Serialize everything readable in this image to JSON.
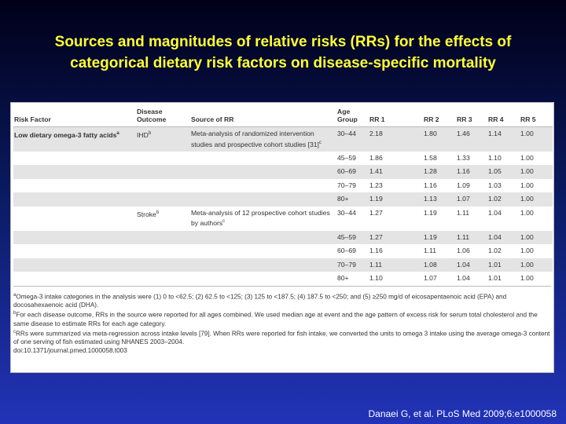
{
  "title": [
    "Sources and magnitudes of relative risks (RRs) for the effects of",
    "categorical dietary risk factors on disease-specific mortality"
  ],
  "table": {
    "columns": [
      "Risk Factor",
      "Disease Outcome",
      "Source of RR",
      "Age Group",
      "RR 1",
      "RR 2",
      "RR 3",
      "RR 4",
      "RR 5"
    ],
    "rows": [
      [
        {
          "text": "Low dietary omega-3 fatty acids",
          "sup": "a"
        },
        {
          "text": "IHD",
          "sup": "b"
        },
        {
          "text": "Meta-analysis of randomized intervention studies and prospective cohort studies [31]",
          "sup": "c"
        },
        "30–44",
        "2.18",
        "1.80",
        "1.46",
        "1.14",
        "1.00"
      ],
      [
        null,
        null,
        null,
        "45–59",
        "1.86",
        "1.58",
        "1.33",
        "1.10",
        "1.00"
      ],
      [
        null,
        null,
        null,
        "60–69",
        "1.41",
        "1.28",
        "1.16",
        "1.05",
        "1.00"
      ],
      [
        null,
        null,
        null,
        "70–79",
        "1.23",
        "1.16",
        "1.09",
        "1.03",
        "1.00"
      ],
      [
        null,
        null,
        null,
        "80+",
        "1.19",
        "1.13",
        "1.07",
        "1.02",
        "1.00"
      ],
      [
        null,
        {
          "text": "Stroke",
          "sup": "b"
        },
        {
          "text": "Meta-analysis of 12 prospective cohort studies by authors",
          "sup": "c"
        },
        "30–44",
        "1.27",
        "1.19",
        "1.11",
        "1.04",
        "1.00"
      ],
      [
        null,
        null,
        null,
        "45–59",
        "1.27",
        "1.19",
        "1.11",
        "1.04",
        "1.00"
      ],
      [
        null,
        null,
        null,
        "60–69",
        "1.16",
        "1.11",
        "1.06",
        "1.02",
        "1.00"
      ],
      [
        null,
        null,
        null,
        "70–79",
        "1.11",
        "1.08",
        "1.04",
        "1.01",
        "1.00"
      ],
      [
        null,
        null,
        null,
        "80+",
        "1.10",
        "1.07",
        "1.04",
        "1.01",
        "1.00"
      ]
    ],
    "footnotes": [
      {
        "sup": "a",
        "text": "Omega-3 intake categories in the analysis were (1) 0 to <62.5; (2) 62.5 to <125; (3) 125 to <187.5; (4) 187.5 to <250; and (5) ≥250 mg/d of eicosapentaenoic acid (EPA) and docosahexaenoic acid (DHA)."
      },
      {
        "sup": "b",
        "text": "For each disease outcome, RRs in the source were reported for all ages combined. We used median age at event and the age pattern of excess risk for serum total cholesterol and the same disease to estimate RRs for each age category."
      },
      {
        "sup": "c",
        "text": "RRs were summarized via meta-regression across intake levels [79]. When RRs were reported for fish intake, we converted the units to omega 3 intake using the average omega-3 content of one serving of fish estimated using NHANES 2003–2004."
      }
    ],
    "doi": "doi:10.1371/journal.pmed.1000058.t003"
  },
  "citation": "Danaei G, et al. PLoS Med 2009;6:e1000058"
}
